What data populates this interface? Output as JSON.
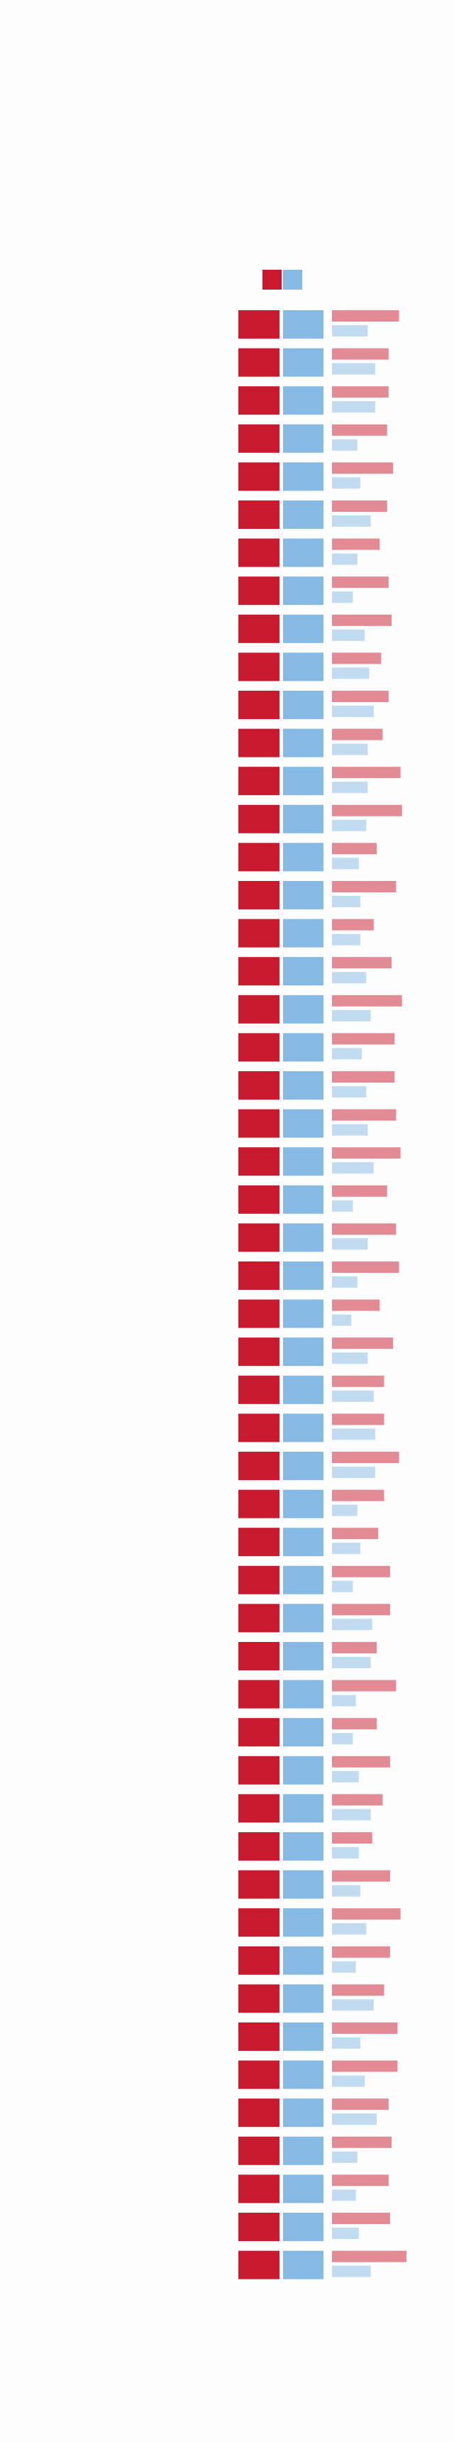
{
  "chart_data": {
    "type": "bar",
    "orientation": "horizontal",
    "legend": "top",
    "xlim": [
      0,
      60
    ],
    "series": [
      {
        "color": "#c8192e",
        "values": [
          45,
          38,
          38,
          37,
          41,
          37,
          32,
          38,
          40,
          33,
          38,
          34,
          46,
          47,
          30,
          43,
          28,
          40,
          47,
          42,
          42,
          43,
          46,
          37,
          43,
          45,
          32,
          41,
          35,
          35,
          45,
          35,
          31,
          39,
          39,
          30,
          43,
          30,
          39,
          34,
          27,
          39,
          46,
          39,
          35,
          44,
          44,
          38,
          40,
          38,
          39,
          50
        ]
      },
      {
        "color": "#86b9e4",
        "values": [
          24,
          29,
          29,
          17,
          19,
          26,
          17,
          14,
          22,
          25,
          28,
          24,
          24,
          23,
          18,
          19,
          19,
          23,
          26,
          20,
          23,
          24,
          28,
          14,
          24,
          17,
          13,
          24,
          28,
          29,
          29,
          17,
          19,
          14,
          27,
          26,
          16,
          14,
          18,
          26,
          18,
          19,
          23,
          16,
          28,
          19,
          22,
          30,
          17,
          16,
          18,
          26
        ]
      }
    ]
  }
}
